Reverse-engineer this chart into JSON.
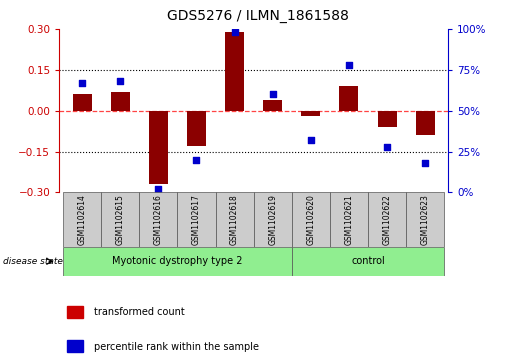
{
  "title": "GDS5276 / ILMN_1861588",
  "samples": [
    "GSM1102614",
    "GSM1102615",
    "GSM1102616",
    "GSM1102617",
    "GSM1102618",
    "GSM1102619",
    "GSM1102620",
    "GSM1102621",
    "GSM1102622",
    "GSM1102623"
  ],
  "transformed_count": [
    0.06,
    0.07,
    -0.27,
    -0.13,
    0.29,
    0.04,
    -0.02,
    0.09,
    -0.06,
    -0.09
  ],
  "percentile_rank": [
    67,
    68,
    2,
    20,
    98,
    60,
    32,
    78,
    28,
    18
  ],
  "group1_label": "Myotonic dystrophy type 2",
  "group1_count": 6,
  "group2_label": "control",
  "group2_count": 4,
  "group_color": "#90EE90",
  "ylim_left": [
    -0.3,
    0.3
  ],
  "ylim_right": [
    0,
    100
  ],
  "yticks_left": [
    -0.3,
    -0.15,
    0.0,
    0.15,
    0.3
  ],
  "yticks_right": [
    0,
    25,
    50,
    75,
    100
  ],
  "bar_color": "#8B0000",
  "dot_color": "#0000CC",
  "hline_color": "#FF4444",
  "dot_color_legend": "#0000CC",
  "bar_color_legend": "#CC0000",
  "label_color_left": "#CC0000",
  "label_color_right": "#0000CC",
  "sample_box_color": "#CCCCCC",
  "disease_state_label": "disease state",
  "legend_bar_label": "transformed count",
  "legend_dot_label": "percentile rank within the sample"
}
